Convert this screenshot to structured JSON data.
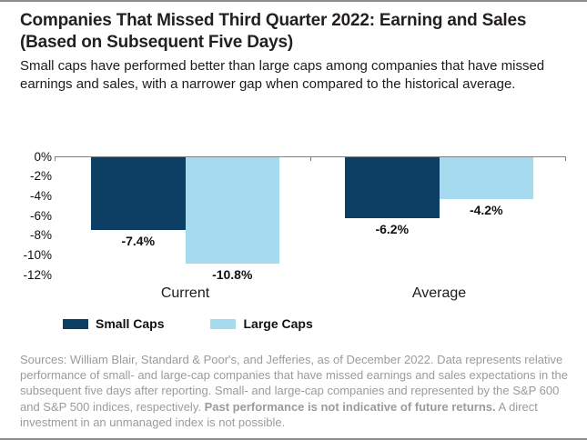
{
  "header": {
    "title": "Companies That Missed Third Quarter 2022: Earning and Sales (Based on Subsequent Five Days)",
    "subtitle": "Small caps have performed better than large caps among companies that have missed earnings and sales, with a narrower gap when compared to the historical average."
  },
  "chart_data": {
    "type": "bar",
    "categories": [
      "Current",
      "Average"
    ],
    "series": [
      {
        "name": "Small Caps",
        "color": "#0c3f63",
        "values": [
          -7.4,
          -6.2
        ]
      },
      {
        "name": "Large Caps",
        "color": "#a6daef",
        "values": [
          -10.8,
          -4.2
        ]
      }
    ],
    "value_labels": [
      [
        "-7.4%",
        "-6.2%"
      ],
      [
        "-10.8%",
        "-4.2%"
      ]
    ],
    "y_ticks": [
      "0%",
      "-2%",
      "-4%",
      "-6%",
      "-8%",
      "-10%",
      "-12%"
    ],
    "ylim": [
      -12,
      0
    ],
    "grid": false,
    "legend_position": "bottom-left",
    "axis_color": "#808080"
  },
  "footnote": {
    "normal_1": "Sources: William Blair, Standard & Poor's, and Jefferies, as of December 2022. Data represents relative performance of small- and large-cap companies that have missed earnings and sales expectations in the subsequent five days after reporting. Small- and large-cap companies and represented by the S&P 600 and S&P 500 indices, respectively. ",
    "bold": "Past performance is not indicative of future returns.",
    "normal_2": " A direct investment in an unmanaged index is not possible."
  }
}
